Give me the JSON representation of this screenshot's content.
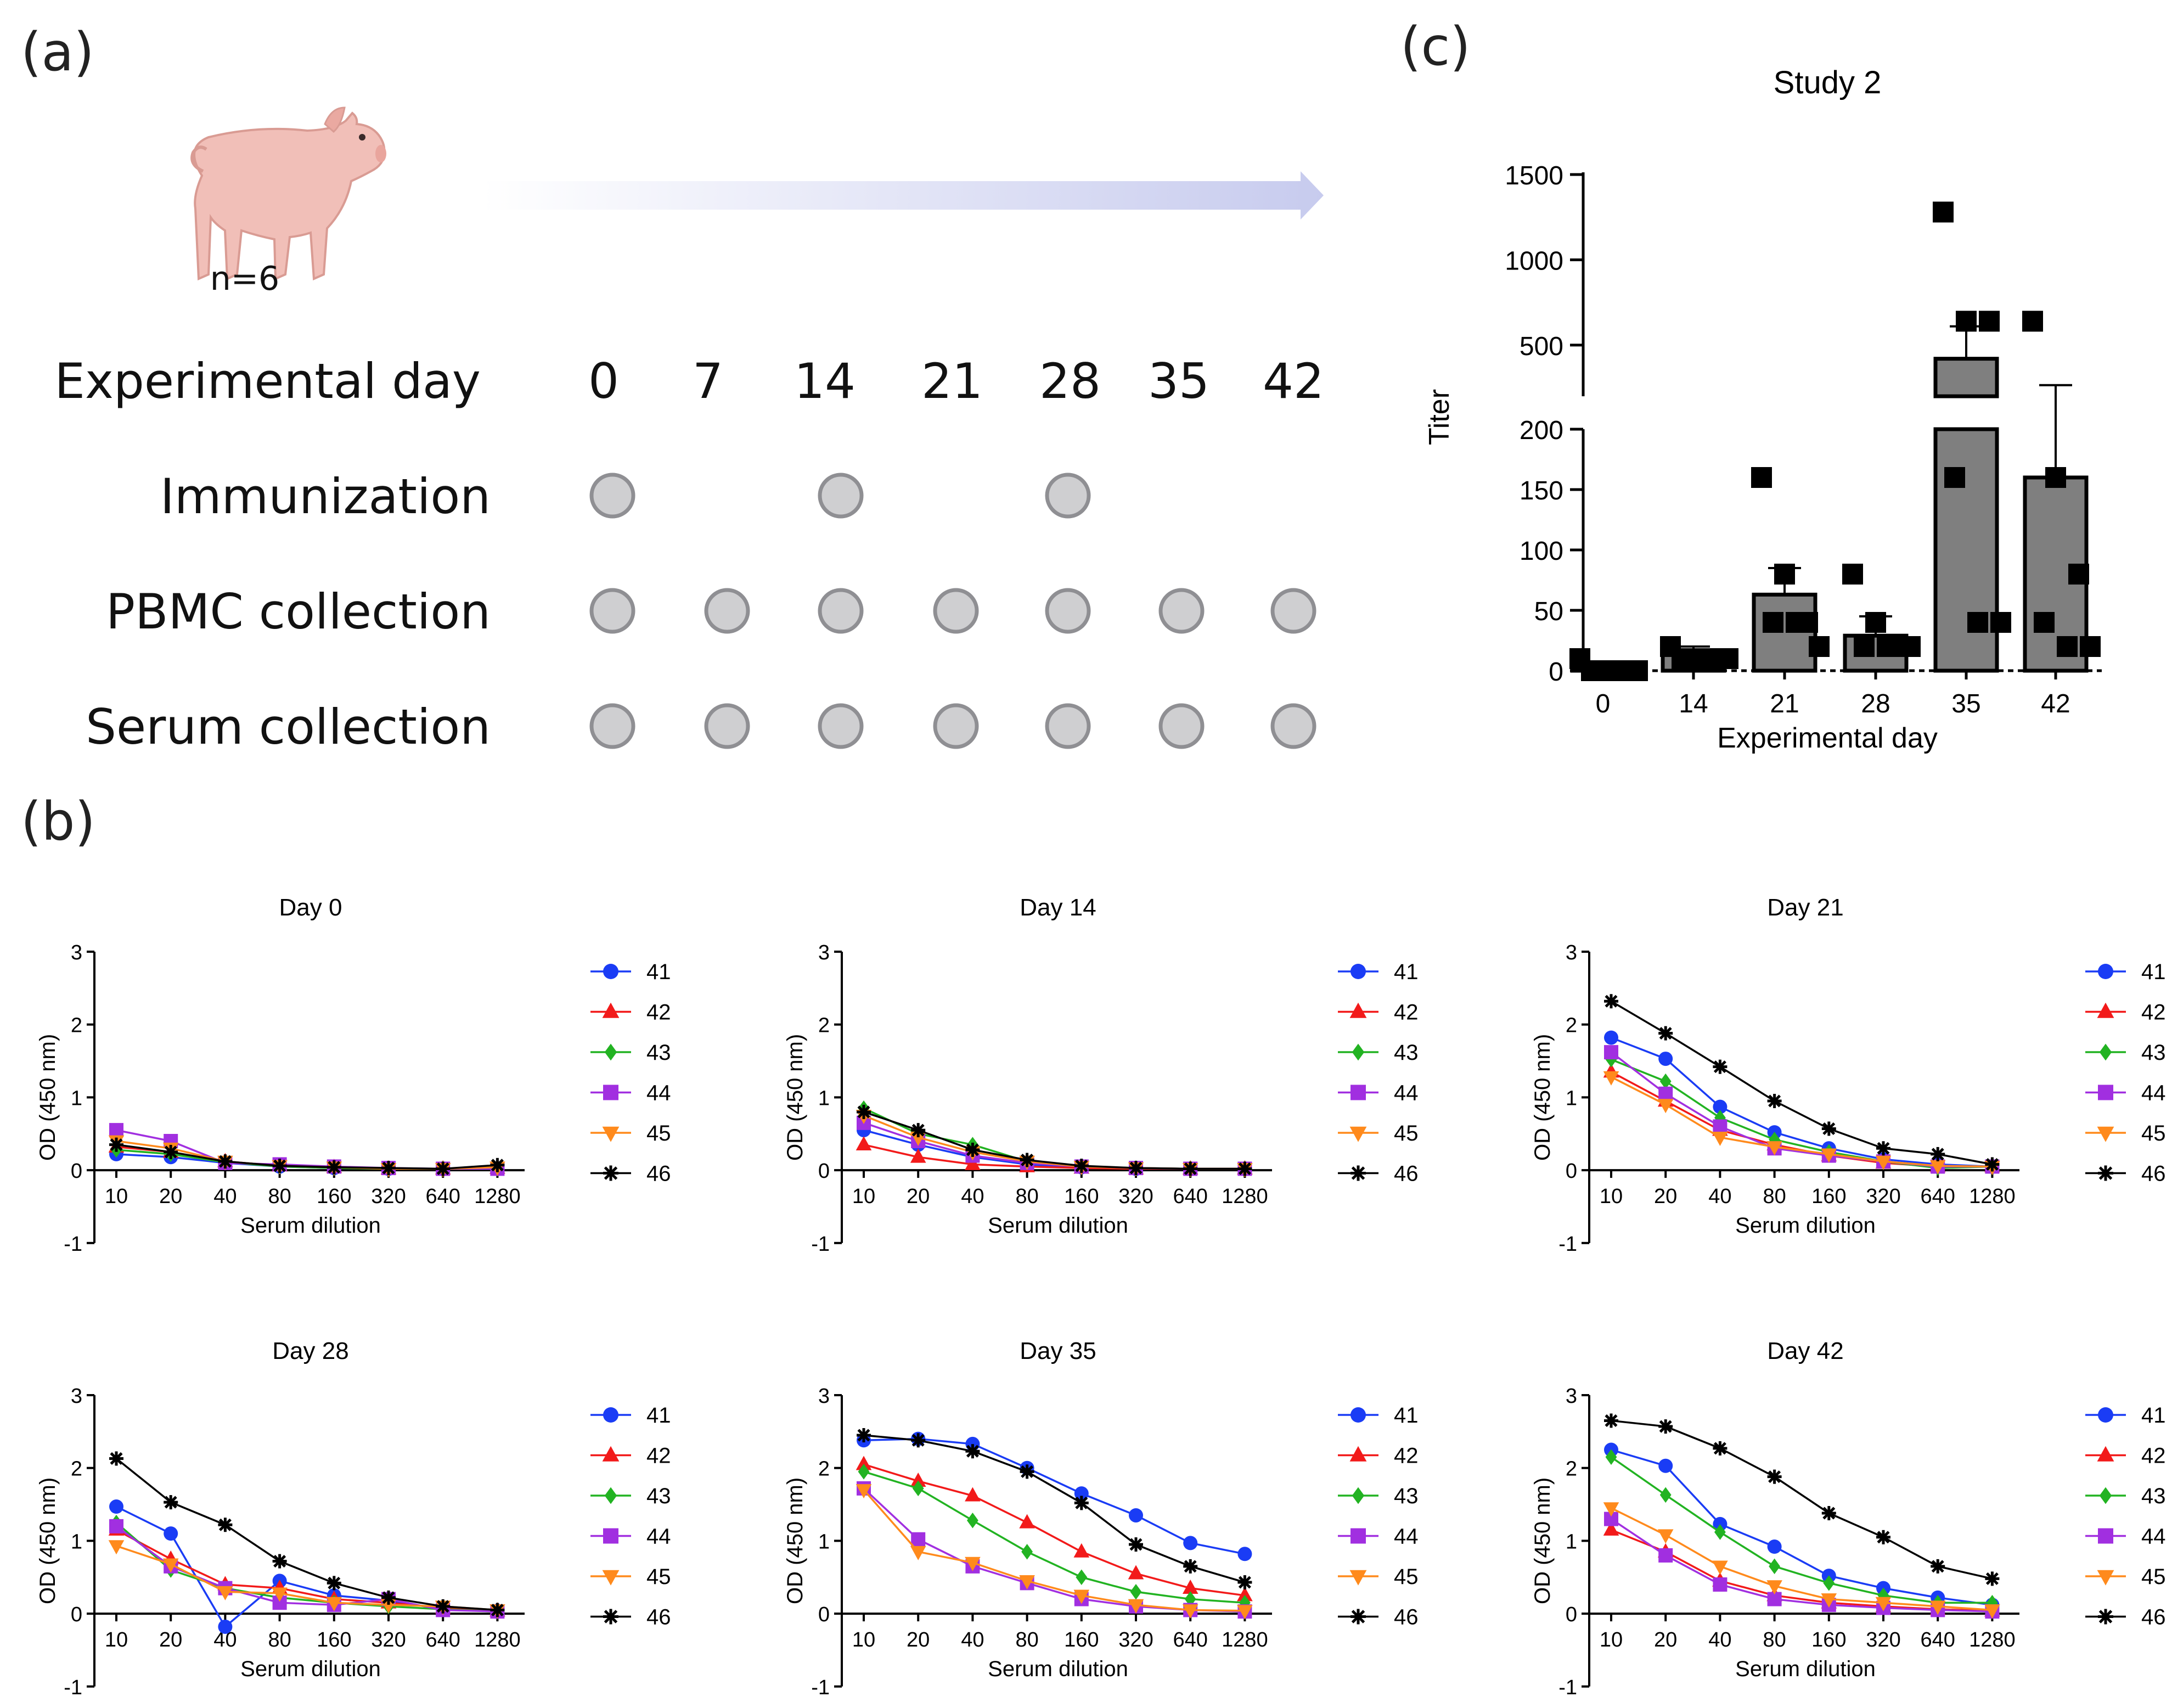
{
  "panel_labels": {
    "a": "(a)",
    "b": "(b)",
    "c": "(c)"
  },
  "schedule": {
    "cohort": "n=6",
    "header": "Experimental day",
    "days": [
      "0",
      "7",
      "14",
      "21",
      "28",
      "35",
      "42"
    ],
    "rows": [
      {
        "label": "Immunization",
        "marks": [
          true,
          false,
          true,
          false,
          true,
          false,
          false
        ]
      },
      {
        "label": "PBMC collection",
        "marks": [
          true,
          true,
          true,
          true,
          true,
          true,
          true
        ]
      },
      {
        "label": "Serum collection",
        "marks": [
          true,
          true,
          true,
          true,
          true,
          true,
          true
        ]
      }
    ],
    "colors": {
      "dot_fill": "#cfcfd1",
      "dot_stroke": "#8f8f93",
      "arrow_start": "#ffffff",
      "arrow_end": "#c7cbee"
    }
  },
  "chart_data": [
    {
      "id": "c",
      "type": "bar",
      "title": "Study 2",
      "xlabel": "Experimental day",
      "ylabel": "Titer",
      "categories": [
        "0",
        "14",
        "21",
        "28",
        "35",
        "42"
      ],
      "values": [
        3,
        15,
        63,
        29,
        420,
        160
      ],
      "error_upper": [
        5,
        20,
        85,
        45,
        610,
        265
      ],
      "points": [
        [
          10,
          0,
          0,
          0,
          0,
          0
        ],
        [
          20,
          10,
          10,
          10,
          10,
          10
        ],
        [
          160,
          80,
          40,
          40,
          40,
          20
        ],
        [
          80,
          40,
          20,
          20,
          20,
          20
        ],
        [
          1280,
          640,
          640,
          160,
          40,
          40
        ],
        [
          640,
          160,
          80,
          40,
          20,
          20
        ]
      ],
      "axis_breaks": {
        "lower_range": [
          0,
          200
        ],
        "upper_range": [
          200,
          1500
        ]
      },
      "ylower_ticks": [
        "0",
        "50",
        "100",
        "150",
        "200"
      ],
      "yupper_ticks": [
        "500",
        "1000",
        "1500"
      ],
      "colors": {
        "bar": "#7f7f7f",
        "point": "#000000"
      }
    },
    {
      "id": "b1",
      "type": "line",
      "title": "Day 0",
      "xlabel": "Serum dilution",
      "ylabel": "OD (450 nm)",
      "x": [
        "10",
        "20",
        "40",
        "80",
        "160",
        "320",
        "640",
        "1280"
      ],
      "ylim": [
        -1,
        3
      ],
      "yticks": [
        "-1",
        "0",
        "1",
        "2",
        "3"
      ],
      "series": [
        {
          "name": "41",
          "values": [
            0.22,
            0.18,
            0.1,
            0.05,
            0.03,
            0.02,
            0.02,
            0.02
          ]
        },
        {
          "name": "42",
          "values": [
            0.32,
            0.25,
            0.12,
            0.06,
            0.04,
            0.02,
            0.02,
            0.03
          ]
        },
        {
          "name": "43",
          "values": [
            0.28,
            0.22,
            0.11,
            0.05,
            0.03,
            0.02,
            0.02,
            0.02
          ]
        },
        {
          "name": "44",
          "values": [
            0.55,
            0.4,
            0.1,
            0.08,
            0.05,
            0.03,
            0.02,
            0.02
          ]
        },
        {
          "name": "45",
          "values": [
            0.4,
            0.3,
            0.12,
            0.06,
            0.04,
            0.02,
            0.02,
            0.04
          ]
        },
        {
          "name": "46",
          "values": [
            0.35,
            0.25,
            0.12,
            0.06,
            0.04,
            0.03,
            0.02,
            0.07
          ]
        }
      ]
    },
    {
      "id": "b2",
      "type": "line",
      "title": "Day 14",
      "xlabel": "Serum dilution",
      "ylabel": "OD (450 nm)",
      "x": [
        "10",
        "20",
        "40",
        "80",
        "160",
        "320",
        "640",
        "1280"
      ],
      "ylim": [
        -1,
        3
      ],
      "yticks": [
        "-1",
        "0",
        "1",
        "2",
        "3"
      ],
      "series": [
        {
          "name": "41",
          "values": [
            0.55,
            0.35,
            0.18,
            0.08,
            0.04,
            0.02,
            0.02,
            0.02
          ]
        },
        {
          "name": "42",
          "values": [
            0.35,
            0.18,
            0.08,
            0.05,
            0.03,
            0.02,
            0.02,
            0.02
          ]
        },
        {
          "name": "43",
          "values": [
            0.85,
            0.5,
            0.35,
            0.12,
            0.05,
            0.03,
            0.02,
            0.02
          ]
        },
        {
          "name": "44",
          "values": [
            0.65,
            0.4,
            0.2,
            0.1,
            0.05,
            0.03,
            0.02,
            0.02
          ]
        },
        {
          "name": "45",
          "values": [
            0.75,
            0.45,
            0.25,
            0.12,
            0.05,
            0.03,
            0.02,
            0.02
          ]
        },
        {
          "name": "46",
          "values": [
            0.8,
            0.55,
            0.28,
            0.14,
            0.06,
            0.03,
            0.02,
            0.02
          ]
        }
      ]
    },
    {
      "id": "b3",
      "type": "line",
      "title": "Day 21",
      "xlabel": "Serum dilution",
      "ylabel": "OD (450 nm)",
      "x": [
        "10",
        "20",
        "40",
        "80",
        "160",
        "320",
        "640",
        "1280"
      ],
      "ylim": [
        -1,
        3
      ],
      "yticks": [
        "-1",
        "0",
        "1",
        "2",
        "3"
      ],
      "series": [
        {
          "name": "41",
          "values": [
            1.82,
            1.53,
            0.87,
            0.52,
            0.3,
            0.15,
            0.08,
            0.05
          ]
        },
        {
          "name": "42",
          "values": [
            1.35,
            0.95,
            0.55,
            0.35,
            0.2,
            0.1,
            0.05,
            0.05
          ]
        },
        {
          "name": "43",
          "values": [
            1.52,
            1.22,
            0.72,
            0.42,
            0.25,
            0.12,
            0.03,
            0.05
          ]
        },
        {
          "name": "44",
          "values": [
            1.62,
            1.05,
            0.6,
            0.3,
            0.2,
            0.12,
            0.05,
            0.05
          ]
        },
        {
          "name": "45",
          "values": [
            1.28,
            0.9,
            0.45,
            0.32,
            0.22,
            0.12,
            0.06,
            0.05
          ]
        },
        {
          "name": "46",
          "values": [
            2.32,
            1.88,
            1.42,
            0.95,
            0.57,
            0.3,
            0.22,
            0.08
          ]
        }
      ]
    },
    {
      "id": "b4",
      "type": "line",
      "title": "Day 28",
      "xlabel": "Serum dilution",
      "ylabel": "OD (450 nm)",
      "x": [
        "10",
        "20",
        "40",
        "80",
        "160",
        "320",
        "640",
        "1280"
      ],
      "ylim": [
        -1,
        3
      ],
      "yticks": [
        "-1",
        "0",
        "1",
        "2",
        "3"
      ],
      "series": [
        {
          "name": "41",
          "values": [
            1.47,
            1.1,
            -0.18,
            0.45,
            0.25,
            0.18,
            0.06,
            0.04
          ]
        },
        {
          "name": "42",
          "values": [
            1.15,
            0.75,
            0.4,
            0.35,
            0.2,
            0.15,
            0.08,
            0.04
          ]
        },
        {
          "name": "43",
          "values": [
            1.25,
            0.6,
            0.35,
            0.22,
            0.15,
            0.1,
            0.06,
            0.03
          ]
        },
        {
          "name": "44",
          "values": [
            1.2,
            0.65,
            0.35,
            0.15,
            0.12,
            0.2,
            0.05,
            0.03
          ]
        },
        {
          "name": "45",
          "values": [
            0.93,
            0.68,
            0.3,
            0.28,
            0.15,
            0.12,
            0.1,
            0.05
          ]
        },
        {
          "name": "46",
          "values": [
            2.13,
            1.53,
            1.22,
            0.72,
            0.42,
            0.22,
            0.1,
            0.05
          ]
        }
      ]
    },
    {
      "id": "b5",
      "type": "line",
      "title": "Day 35",
      "xlabel": "Serum dilution",
      "ylabel": "OD (450 nm)",
      "x": [
        "10",
        "20",
        "40",
        "80",
        "160",
        "320",
        "640",
        "1280"
      ],
      "ylim": [
        -1,
        3
      ],
      "yticks": [
        "-1",
        "0",
        "1",
        "2",
        "3"
      ],
      "series": [
        {
          "name": "41",
          "values": [
            2.38,
            2.4,
            2.33,
            2.0,
            1.65,
            1.35,
            0.97,
            0.82
          ]
        },
        {
          "name": "42",
          "values": [
            2.05,
            1.82,
            1.62,
            1.25,
            0.85,
            0.55,
            0.35,
            0.25
          ]
        },
        {
          "name": "43",
          "values": [
            1.95,
            1.72,
            1.28,
            0.85,
            0.5,
            0.3,
            0.2,
            0.15
          ]
        },
        {
          "name": "44",
          "values": [
            1.72,
            1.02,
            0.65,
            0.42,
            0.2,
            0.1,
            0.05,
            0.03
          ]
        },
        {
          "name": "45",
          "values": [
            1.7,
            0.85,
            0.7,
            0.45,
            0.25,
            0.12,
            0.05,
            0.04
          ]
        },
        {
          "name": "46",
          "values": [
            2.45,
            2.38,
            2.23,
            1.95,
            1.52,
            0.95,
            0.65,
            0.43
          ]
        }
      ]
    },
    {
      "id": "b6",
      "type": "line",
      "title": "Day 42",
      "xlabel": "Serum dilution",
      "ylabel": "OD (450 nm)",
      "x": [
        "10",
        "20",
        "40",
        "80",
        "160",
        "320",
        "640",
        "1280"
      ],
      "ylim": [
        -1,
        3
      ],
      "yticks": [
        "-1",
        "0",
        "1",
        "2",
        "3"
      ],
      "series": [
        {
          "name": "41",
          "values": [
            2.25,
            2.03,
            1.23,
            0.92,
            0.52,
            0.35,
            0.22,
            0.12
          ]
        },
        {
          "name": "42",
          "values": [
            1.15,
            0.85,
            0.45,
            0.25,
            0.15,
            0.1,
            0.06,
            0.04
          ]
        },
        {
          "name": "43",
          "values": [
            2.15,
            1.63,
            1.12,
            0.65,
            0.42,
            0.25,
            0.15,
            0.15
          ]
        },
        {
          "name": "44",
          "values": [
            1.3,
            0.8,
            0.4,
            0.2,
            0.12,
            0.08,
            0.05,
            0.03
          ]
        },
        {
          "name": "45",
          "values": [
            1.45,
            1.08,
            0.65,
            0.38,
            0.2,
            0.15,
            0.1,
            0.05
          ]
        },
        {
          "name": "46",
          "values": [
            2.65,
            2.57,
            2.27,
            1.88,
            1.38,
            1.05,
            0.65,
            0.48
          ]
        }
      ]
    }
  ],
  "series_styles": [
    {
      "name": "41",
      "color": "#1a3cf5",
      "marker": "circle"
    },
    {
      "name": "42",
      "color": "#f21a1a",
      "marker": "triangle-up"
    },
    {
      "name": "43",
      "color": "#22b322",
      "marker": "diamond"
    },
    {
      "name": "44",
      "color": "#a12fe0",
      "marker": "square"
    },
    {
      "name": "45",
      "color": "#ff8a1c",
      "marker": "triangle-down"
    },
    {
      "name": "46",
      "color": "#000000",
      "marker": "star"
    }
  ]
}
